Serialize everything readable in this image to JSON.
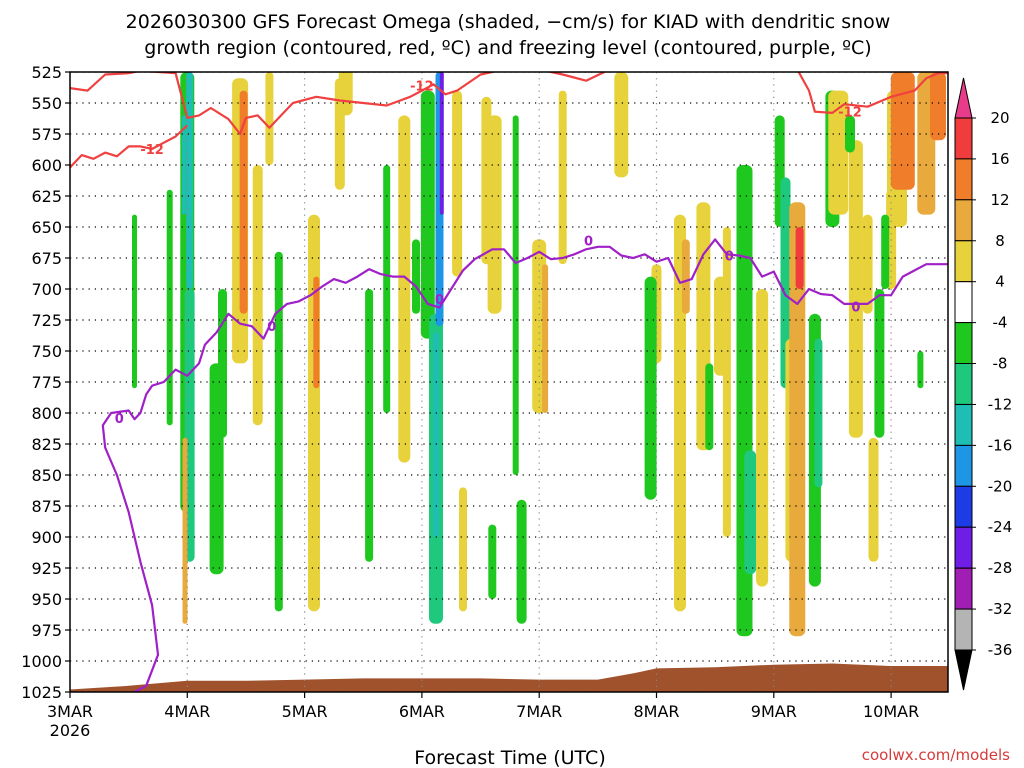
{
  "chart_data": {
    "type": "heatmap",
    "title_line1": "2026030300 GFS Forecast Omega (shaded, −cm/s) for KIAD with dendritic snow",
    "title_line2": "growth region (contoured, red, ºC) and freezing level (contoured, purple, ºC)",
    "xlabel": "Forecast Time (UTC)",
    "ylabel": "",
    "credit": "coolwx.com/models",
    "x_range_days": [
      0,
      7.5
    ],
    "y_range_hpa": [
      525,
      1025
    ],
    "x_ticks": [
      {
        "label": "3MAR",
        "sublabel": "2026",
        "day": 0
      },
      {
        "label": "4MAR",
        "sublabel": "",
        "day": 1
      },
      {
        "label": "5MAR",
        "sublabel": "",
        "day": 2
      },
      {
        "label": "6MAR",
        "sublabel": "",
        "day": 3
      },
      {
        "label": "7MAR",
        "sublabel": "",
        "day": 4
      },
      {
        "label": "8MAR",
        "sublabel": "",
        "day": 5
      },
      {
        "label": "9MAR",
        "sublabel": "",
        "day": 6
      },
      {
        "label": "10MAR",
        "sublabel": "",
        "day": 7
      }
    ],
    "y_ticks": [
      "525",
      "550",
      "575",
      "600",
      "625",
      "650",
      "675",
      "700",
      "725",
      "750",
      "775",
      "800",
      "825",
      "850",
      "875",
      "900",
      "925",
      "950",
      "975",
      "1000",
      "1025"
    ],
    "colorbar": {
      "labels": [
        "20",
        "16",
        "12",
        "8",
        "4",
        "-4",
        "-8",
        "-12",
        "-16",
        "-20",
        "-24",
        "-28",
        "-32",
        "-36"
      ],
      "levels": [
        {
          "min": 20,
          "max": 24,
          "color": "#e83c8a"
        },
        {
          "min": 16,
          "max": 20,
          "color": "#f03c3c"
        },
        {
          "min": 12,
          "max": 16,
          "color": "#f07d2a"
        },
        {
          "min": 8,
          "max": 12,
          "color": "#e8aa3c"
        },
        {
          "min": 4,
          "max": 8,
          "color": "#e8d23c"
        },
        {
          "min": -4,
          "max": 4,
          "color": "#ffffff"
        },
        {
          "min": -8,
          "max": -4,
          "color": "#1ec81e"
        },
        {
          "min": -12,
          "max": -8,
          "color": "#1ec87d"
        },
        {
          "min": -16,
          "max": -12,
          "color": "#1ebeb4"
        },
        {
          "min": -20,
          "max": -16,
          "color": "#1e96e6"
        },
        {
          "min": -24,
          "max": -20,
          "color": "#1e3ce6"
        },
        {
          "min": -28,
          "max": -24,
          "color": "#6e1ee6"
        },
        {
          "min": -32,
          "max": -28,
          "color": "#a01eb4"
        },
        {
          "min": -36,
          "max": -32,
          "color": "#b4b4b4"
        },
        {
          "min": -40,
          "max": -36,
          "color": "#000000"
        }
      ]
    },
    "colors": {
      "dgz_contour": "#f04040",
      "freezing_contour": "#a020c8",
      "terrain": "#a0522d"
    },
    "contour_labels": {
      "dgz": "-12",
      "freezing": "0"
    },
    "terrain_hpa": [
      [
        0.0,
        1023
      ],
      [
        0.5,
        1020
      ],
      [
        1.0,
        1016
      ],
      [
        1.5,
        1016
      ],
      [
        2.0,
        1015
      ],
      [
        2.5,
        1014
      ],
      [
        3.0,
        1014
      ],
      [
        3.5,
        1014
      ],
      [
        4.0,
        1015
      ],
      [
        4.5,
        1015
      ],
      [
        4.8,
        1010
      ],
      [
        5.0,
        1006
      ],
      [
        5.5,
        1005
      ],
      [
        6.0,
        1003
      ],
      [
        6.5,
        1002
      ],
      [
        7.0,
        1004
      ],
      [
        7.5,
        1004
      ]
    ],
    "dgz_upper_hpa": [
      [
        0.0,
        538
      ],
      [
        0.15,
        540
      ],
      [
        0.3,
        527
      ],
      [
        0.5,
        526
      ],
      [
        0.6,
        524
      ],
      [
        0.9,
        526
      ],
      [
        1.0,
        562
      ],
      [
        1.1,
        560
      ],
      [
        1.2,
        554
      ],
      [
        1.35,
        563
      ],
      [
        1.45,
        575
      ],
      [
        1.5,
        562
      ],
      [
        1.6,
        560
      ],
      [
        1.7,
        570
      ],
      [
        1.8,
        560
      ],
      [
        1.9,
        550
      ],
      [
        2.1,
        545
      ],
      [
        2.3,
        548
      ],
      [
        2.5,
        550
      ],
      [
        2.7,
        552
      ],
      [
        2.9,
        545
      ],
      [
        3.0,
        540
      ],
      [
        3.1,
        535
      ],
      [
        3.2,
        543
      ],
      [
        3.3,
        540
      ],
      [
        3.5,
        527
      ],
      [
        3.7,
        523
      ],
      [
        4.0,
        523
      ],
      [
        4.2,
        527
      ],
      [
        4.4,
        532
      ],
      [
        4.6,
        523
      ],
      [
        5.0,
        518
      ],
      [
        5.5,
        518
      ],
      [
        6.0,
        520
      ],
      [
        6.2,
        523
      ],
      [
        6.3,
        540
      ],
      [
        6.35,
        557
      ],
      [
        6.5,
        558
      ],
      [
        6.6,
        551
      ],
      [
        6.8,
        553
      ],
      [
        7.0,
        545
      ],
      [
        7.2,
        540
      ],
      [
        7.3,
        530
      ],
      [
        7.4,
        526
      ],
      [
        7.5,
        526
      ]
    ],
    "dgz_lower_hpa": [
      [
        0.0,
        602
      ],
      [
        0.1,
        592
      ],
      [
        0.2,
        595
      ],
      [
        0.3,
        590
      ],
      [
        0.4,
        593
      ],
      [
        0.5,
        585
      ],
      [
        0.6,
        585
      ],
      [
        0.7,
        587
      ],
      [
        0.8,
        582
      ],
      [
        0.9,
        577
      ],
      [
        1.0,
        568
      ]
    ],
    "freezing_hpa": [
      [
        0.55,
        1025
      ],
      [
        0.65,
        1020
      ],
      [
        0.75,
        995
      ],
      [
        0.7,
        955
      ],
      [
        0.6,
        920
      ],
      [
        0.5,
        880
      ],
      [
        0.4,
        850
      ],
      [
        0.3,
        828
      ],
      [
        0.28,
        810
      ],
      [
        0.35,
        800
      ],
      [
        0.5,
        798
      ],
      [
        0.55,
        805
      ],
      [
        0.6,
        800
      ],
      [
        0.65,
        785
      ],
      [
        0.7,
        778
      ],
      [
        0.8,
        775
      ],
      [
        0.9,
        765
      ],
      [
        1.0,
        770
      ],
      [
        1.1,
        760
      ],
      [
        1.15,
        745
      ],
      [
        1.25,
        735
      ],
      [
        1.35,
        720
      ],
      [
        1.45,
        728
      ],
      [
        1.55,
        730
      ],
      [
        1.65,
        740
      ],
      [
        1.75,
        720
      ],
      [
        1.85,
        712
      ],
      [
        1.95,
        710
      ],
      [
        2.05,
        705
      ],
      [
        2.15,
        698
      ],
      [
        2.25,
        692
      ],
      [
        2.35,
        695
      ],
      [
        2.45,
        690
      ],
      [
        2.55,
        684
      ],
      [
        2.65,
        688
      ],
      [
        2.75,
        690
      ],
      [
        2.85,
        690
      ],
      [
        2.95,
        698
      ],
      [
        3.05,
        712
      ],
      [
        3.15,
        715
      ],
      [
        3.25,
        700
      ],
      [
        3.35,
        685
      ],
      [
        3.45,
        676
      ],
      [
        3.6,
        668
      ],
      [
        3.7,
        668
      ],
      [
        3.8,
        679
      ],
      [
        3.9,
        675
      ],
      [
        4.0,
        670
      ],
      [
        4.1,
        676
      ],
      [
        4.2,
        675
      ],
      [
        4.3,
        672
      ],
      [
        4.4,
        668
      ],
      [
        4.5,
        666
      ],
      [
        4.6,
        666
      ],
      [
        4.7,
        673
      ],
      [
        4.8,
        675
      ],
      [
        4.9,
        672
      ],
      [
        5.0,
        678
      ],
      [
        5.1,
        675
      ],
      [
        5.2,
        695
      ],
      [
        5.3,
        692
      ],
      [
        5.4,
        672
      ],
      [
        5.5,
        660
      ],
      [
        5.6,
        672
      ],
      [
        5.7,
        673
      ],
      [
        5.8,
        675
      ],
      [
        5.9,
        690
      ],
      [
        6.0,
        686
      ],
      [
        6.1,
        705
      ],
      [
        6.2,
        712
      ],
      [
        6.3,
        700
      ],
      [
        6.4,
        704
      ],
      [
        6.5,
        705
      ],
      [
        6.6,
        712
      ],
      [
        6.7,
        712
      ],
      [
        6.8,
        712
      ],
      [
        6.9,
        705
      ],
      [
        7.0,
        705
      ],
      [
        7.1,
        690
      ],
      [
        7.2,
        685
      ],
      [
        7.3,
        680
      ],
      [
        7.4,
        680
      ],
      [
        7.5,
        680
      ]
    ]
  }
}
